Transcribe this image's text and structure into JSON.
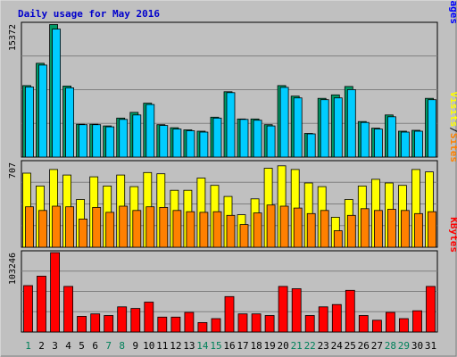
{
  "chart_data": {
    "type": "bar",
    "title": "Daily usage for May 2016",
    "x": [
      "1",
      "2",
      "3",
      "4",
      "5",
      "6",
      "7",
      "8",
      "9",
      "10",
      "11",
      "12",
      "13",
      "14",
      "15",
      "16",
      "17",
      "18",
      "19",
      "20",
      "21",
      "22",
      "23",
      "24",
      "25",
      "26",
      "27",
      "28",
      "29",
      "30",
      "31"
    ],
    "weekend_days": [
      "1",
      "7",
      "8",
      "14",
      "15",
      "21",
      "22",
      "28",
      "29"
    ],
    "grid": true,
    "panels": [
      {
        "ylabel_max": "15372",
        "ymax": 15372,
        "side_labels": [
          {
            "text": "Pages",
            "color": "#0000ff"
          },
          {
            "text": "Files",
            "color": "#00ccff"
          },
          {
            "text": "Hits",
            "color": "#009966"
          }
        ],
        "series": [
          {
            "name": "Hits",
            "color": "#009966",
            "values": [
              8150,
              10700,
              15120,
              8100,
              3750,
              3750,
              3550,
              4450,
              5100,
              6150,
              3700,
              3350,
              3100,
              2950,
              4550,
              7450,
              4350,
              4350,
              3700,
              8150,
              6950,
              2700,
              6700,
              7100,
              8050,
              4050,
              3300,
              4800,
              2950,
              3050,
              6700
            ]
          },
          {
            "name": "Files",
            "color": "#00ccff",
            "values": [
              8000,
              10500,
              14600,
              7900,
              3700,
              3700,
              3450,
              4300,
              4800,
              6000,
              3600,
              3200,
              3000,
              2850,
              4450,
              7350,
              4300,
              4200,
              3550,
              7950,
              6750,
              2650,
              6550,
              6750,
              7700,
              3950,
              3200,
              4600,
              2850,
              2950,
              6550
            ]
          }
        ]
      },
      {
        "ylabel_max": "707",
        "ymax": 707,
        "side_labels": [
          {
            "text": "Sites",
            "color": "#ff8000"
          },
          {
            "text": "Visits",
            "color": "#ffff00"
          }
        ],
        "series": [
          {
            "name": "Visits",
            "color": "#ffff00",
            "values": [
              605,
              500,
              635,
              590,
              390,
              575,
              500,
              590,
              495,
              610,
              600,
              465,
              465,
              565,
              505,
              415,
              265,
              395,
              645,
              665,
              635,
              525,
              495,
              245,
              390,
              500,
              555,
              525,
              505,
              635,
              615
            ]
          },
          {
            "name": "Sites",
            "color": "#ff8000",
            "values": [
              330,
              300,
              335,
              330,
              230,
              325,
              285,
              335,
              300,
              330,
              325,
              300,
              290,
              285,
              290,
              260,
              185,
              280,
              345,
              335,
              320,
              275,
              300,
              135,
              260,
              315,
              300,
              310,
              300,
              275,
              290
            ]
          }
        ]
      },
      {
        "ylabel_max": "103246",
        "ymax": 103246,
        "side_labels": [
          {
            "text": "KBytes",
            "color": "#ff0000"
          }
        ],
        "series": [
          {
            "name": "KBytes",
            "color": "#ff0000",
            "values": [
              59000,
              71000,
              101000,
              58000,
              20000,
              23000,
              21000,
              32000,
              30000,
              38000,
              19000,
              19000,
              25000,
              12000,
              17000,
              45000,
              23000,
              23000,
              21000,
              58000,
              55000,
              21000,
              32000,
              35000,
              53000,
              21000,
              15000,
              25000,
              17000,
              27000,
              58000
            ]
          }
        ]
      }
    ]
  }
}
